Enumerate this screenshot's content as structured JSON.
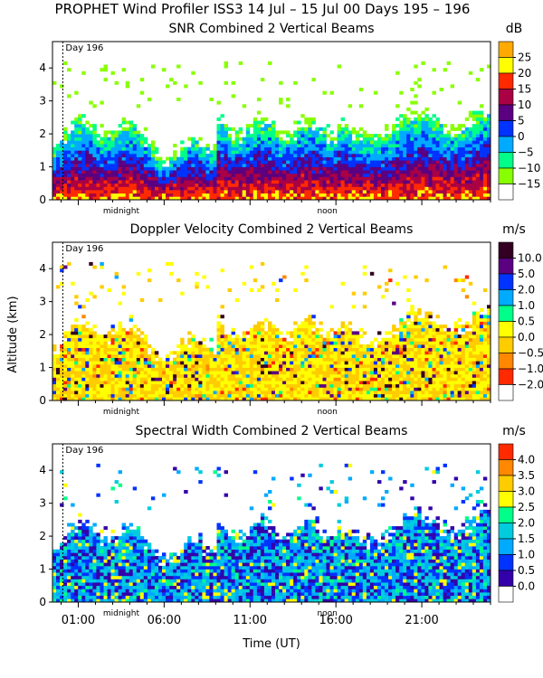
{
  "figure_title": "PROPHET Wind Profiler ISS3  14 Jul – 15 Jul 00 Days 195 – 196",
  "y_axis_label": "Altitude (km)",
  "x_axis_label": "Time (UT)",
  "x_tick_labels": [
    "01:00",
    "06:00",
    "11:00",
    "16:00",
    "21:00"
  ],
  "marker_labels": {
    "midnight": "midnight",
    "noon": "noon",
    "day": "Day 196"
  },
  "chart_data": [
    {
      "type": "heatmap",
      "title": "SNR Combined 2 Vertical Beams",
      "unit": "dB",
      "ylim": [
        0,
        4.8
      ],
      "y_ticks": [
        0,
        1,
        2,
        3,
        4
      ],
      "colorbar_labels": [
        "25",
        "20",
        "15",
        "10",
        "5",
        "0",
        "−5",
        "−10",
        "−15"
      ],
      "colorbar_colors": [
        "#ffaa00",
        "#ffff00",
        "#ff2a00",
        "#aa0044",
        "#5a0080",
        "#0033ff",
        "#00aaff",
        "#00ff88",
        "#88ff00",
        "#ffffff"
      ]
    },
    {
      "type": "heatmap",
      "title": "Doppler Velocity Combined 2 Vertical Beams",
      "unit": "m/s",
      "ylim": [
        0,
        4.8
      ],
      "y_ticks": [
        0,
        1,
        2,
        3,
        4
      ],
      "colorbar_labels": [
        "10.0",
        "5.0",
        "2.0",
        "1.0",
        "0.5",
        "0.0",
        "−0.5",
        "−1.0",
        "−2.0"
      ],
      "colorbar_colors": [
        "#330022",
        "#5a0080",
        "#0033ff",
        "#00aaff",
        "#00ff88",
        "#ffff00",
        "#ffcc00",
        "#ff8800",
        "#ff2a00",
        "#ffffff"
      ]
    },
    {
      "type": "heatmap",
      "title": "Spectral Width Combined 2 Vertical Beams",
      "unit": "m/s",
      "ylim": [
        0,
        4.8
      ],
      "y_ticks": [
        0,
        1,
        2,
        3,
        4
      ],
      "colorbar_labels": [
        "4.0",
        "3.5",
        "3.0",
        "2.5",
        "2.0",
        "1.5",
        "1.0",
        "0.5",
        "0.0"
      ],
      "colorbar_colors": [
        "#ff2a00",
        "#ff8800",
        "#ffcc00",
        "#ffff00",
        "#00ff88",
        "#00ccdd",
        "#00aaff",
        "#0033ff",
        "#3300aa",
        "#ffffff"
      ]
    }
  ]
}
